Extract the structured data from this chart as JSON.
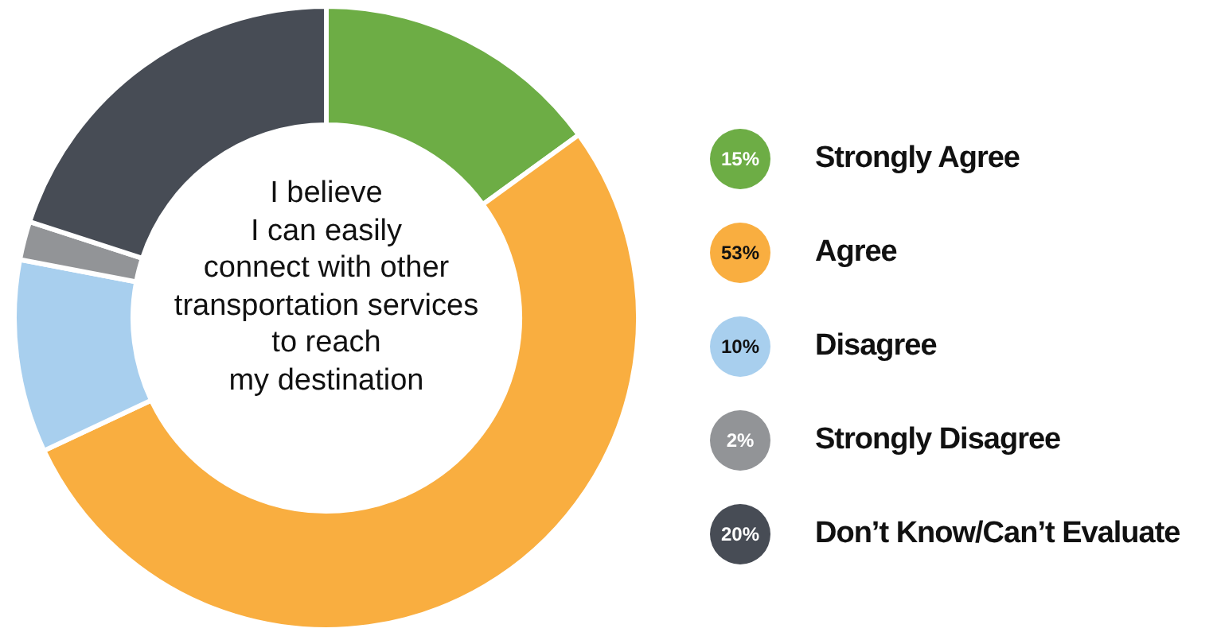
{
  "chart_data": {
    "type": "donut",
    "title": "I believe\nI can easily\nconnect with other\ntransportation services\nto reach\nmy destination",
    "categories": [
      "Strongly Agree",
      "Agree",
      "Disagree",
      "Strongly Disagree",
      "Don’t Know/Can’t Evaluate"
    ],
    "values": [
      15,
      53,
      10,
      2,
      20
    ],
    "colors": [
      "#6dad45",
      "#f9ae40",
      "#a8cfee",
      "#929497",
      "#474c55"
    ],
    "value_labels": [
      "15%",
      "53%",
      "10%",
      "2%",
      "20%"
    ],
    "legend": "right"
  }
}
